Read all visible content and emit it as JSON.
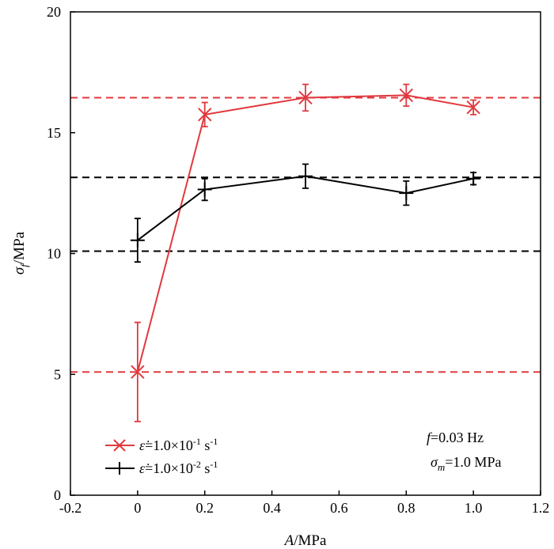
{
  "chart_data": {
    "type": "line",
    "x_axis": {
      "label_var": "A",
      "label_unit": "/MPa",
      "range": [
        -0.2,
        1.2
      ],
      "ticks": [
        -0.2,
        0,
        0.2,
        0.4,
        0.6,
        0.8,
        1.0,
        1.2
      ],
      "tick_labels": [
        "-0.2",
        "0",
        "0.2",
        "0.4",
        "0.6",
        "0.8",
        "1.0",
        "1.2"
      ]
    },
    "y_axis": {
      "label_var": "σ",
      "label_sub": "f",
      "label_unit": "/MPa",
      "range": [
        0,
        20
      ],
      "ticks": [
        0,
        5,
        10,
        15,
        20
      ],
      "tick_labels": [
        "0",
        "5",
        "10",
        "15",
        "20"
      ]
    },
    "grid": false,
    "legend_position": "bottom-left",
    "series": [
      {
        "name_parts": [
          "ε̇",
          "=1.0×10",
          "-1",
          " s",
          "-1"
        ],
        "color": "#e0393e",
        "marker": "x",
        "x": [
          0,
          0.2,
          0.5,
          0.8,
          1.0
        ],
        "y": [
          5.1,
          15.75,
          16.45,
          16.55,
          16.05
        ],
        "err": [
          2.05,
          0.5,
          0.55,
          0.45,
          0.3
        ]
      },
      {
        "name_parts": [
          "ε̇",
          "=1.0×10",
          "-2",
          " s",
          "-1"
        ],
        "color": "#000000",
        "marker": "+",
        "x": [
          0,
          0.2,
          0.5,
          0.8,
          1.0
        ],
        "y": [
          10.55,
          12.65,
          13.2,
          12.5,
          13.1
        ],
        "err": [
          0.9,
          0.45,
          0.5,
          0.5,
          0.25
        ]
      }
    ],
    "reference_lines": [
      {
        "y": 16.45,
        "color": "#e0393e"
      },
      {
        "y": 5.1,
        "color": "#e0393e"
      },
      {
        "y": 13.15,
        "color": "#000000"
      },
      {
        "y": 10.1,
        "color": "#000000"
      }
    ],
    "annotation": {
      "line1_var": "f",
      "line1_rest": "=0.03 Hz",
      "line2_var": "σ",
      "line2_sub": "m",
      "line2_rest": "=1.0 MPa"
    }
  }
}
